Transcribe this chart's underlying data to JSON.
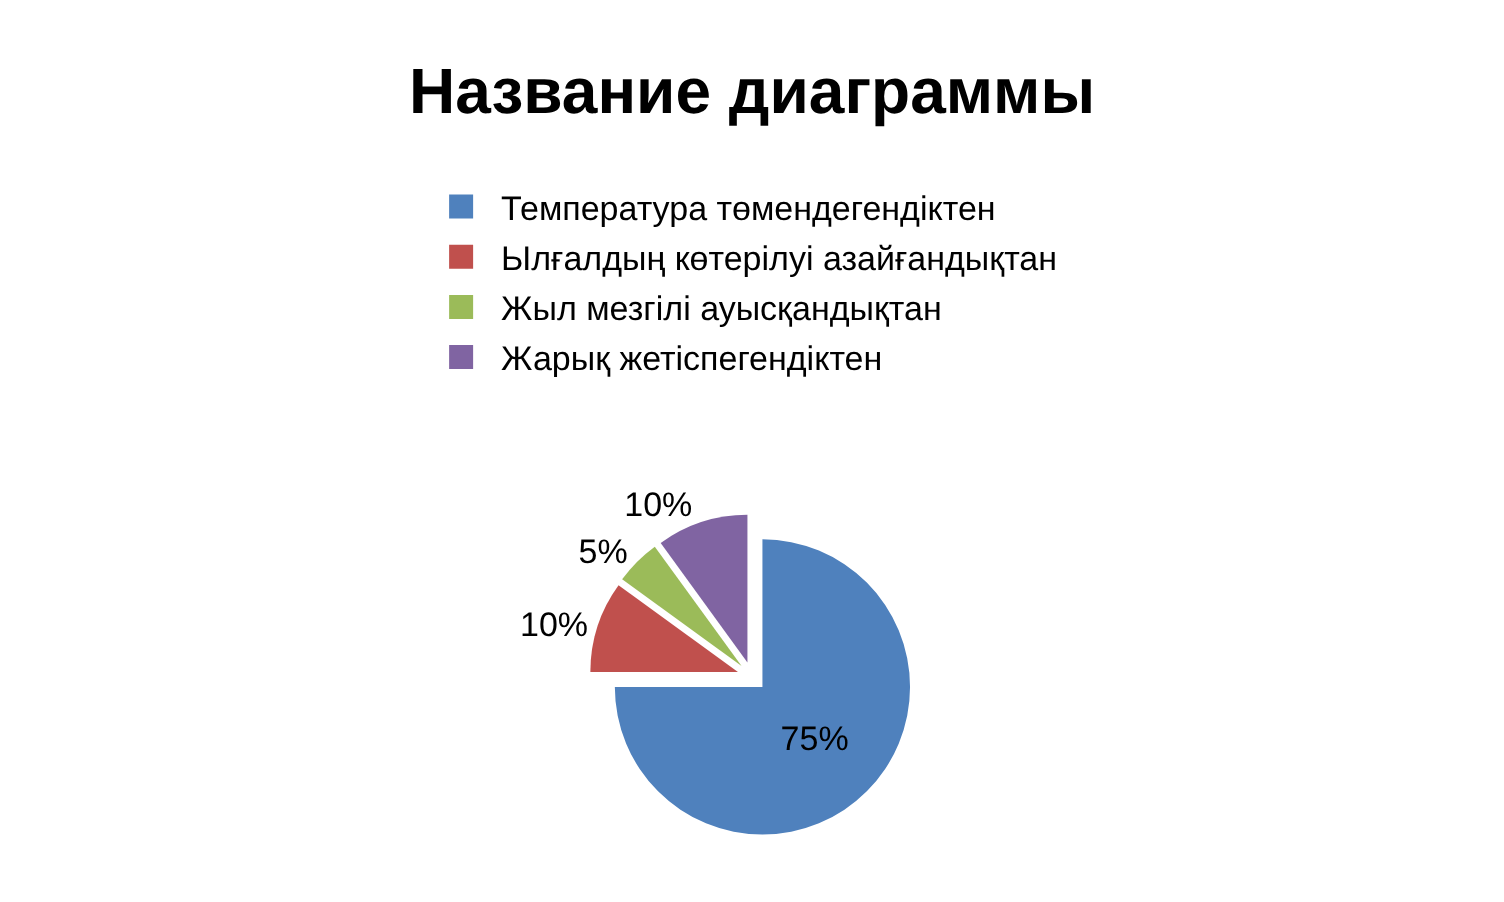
{
  "chart_data": {
    "type": "pie",
    "title": "Название диаграммы",
    "categories": [
      "Температура төмендегендіктен",
      "Ылғалдың көтерілуі азайғандықтан",
      "Жыл мезгілі ауысқандықтан",
      "Жарық жетіспегендіктен"
    ],
    "values": [
      75,
      10,
      5,
      10
    ],
    "value_labels": [
      "75%",
      "10%",
      "5%",
      "10%"
    ],
    "colors": [
      "#4f81bd",
      "#c0504d",
      "#9bbb59",
      "#8064a2"
    ],
    "legend": "top"
  }
}
